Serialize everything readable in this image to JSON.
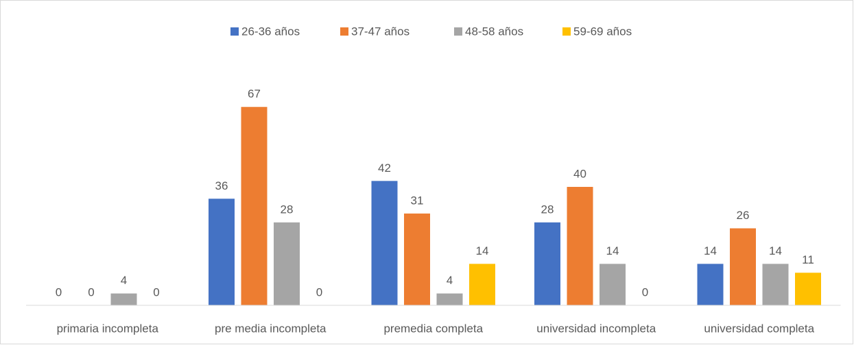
{
  "chart_data": {
    "type": "bar",
    "categories": [
      "primaria incompleta",
      "pre media incompleta",
      "premedia completa",
      "universidad incompleta",
      "universidad completa"
    ],
    "series": [
      {
        "name": "26-36 años",
        "color": "#4472c4",
        "values": [
          0,
          36,
          42,
          28,
          14
        ]
      },
      {
        "name": "37-47 años",
        "color": "#ed7d31",
        "values": [
          0,
          67,
          31,
          40,
          26
        ]
      },
      {
        "name": "48-58 años",
        "color": "#a5a5a5",
        "values": [
          4,
          28,
          4,
          14,
          14
        ]
      },
      {
        "name": "59-69 años",
        "color": "#ffc000",
        "values": [
          0,
          0,
          14,
          0,
          11
        ]
      }
    ],
    "ylim": [
      0,
      80
    ],
    "legend": "top"
  }
}
